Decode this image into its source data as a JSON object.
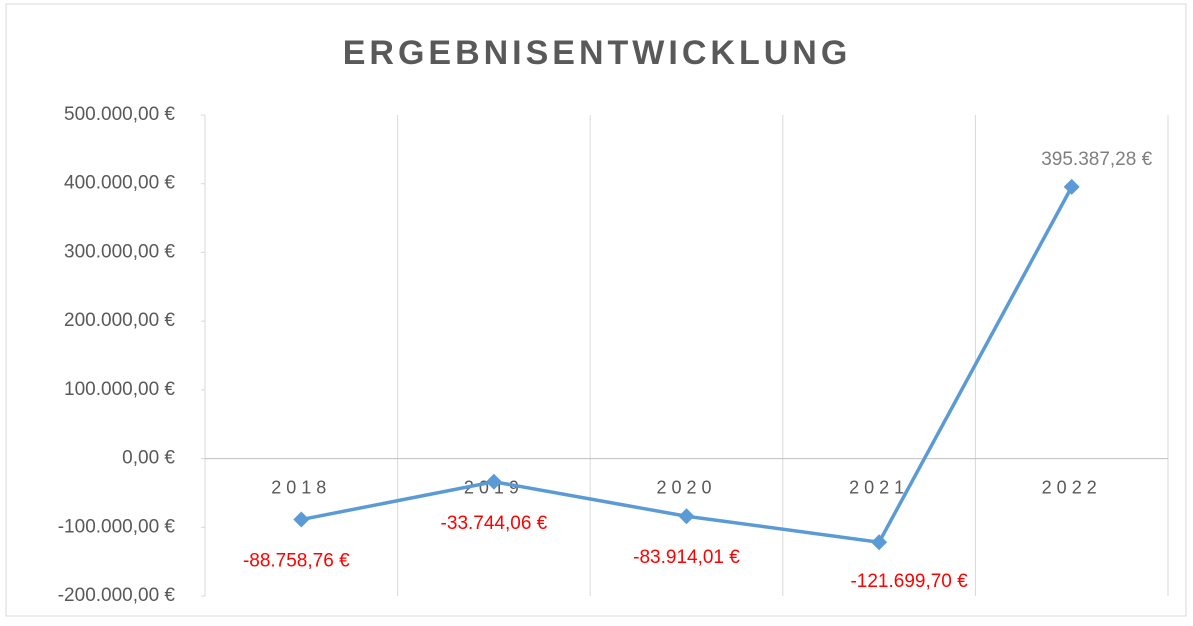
{
  "chart_data": {
    "type": "line",
    "title": "ERGEBNISENTWICKLUNG",
    "categories": [
      "2018",
      "2019",
      "2020",
      "2021",
      "2022"
    ],
    "series": [
      {
        "name": "Ergebnis",
        "color": "#5b9bd5",
        "values": [
          -88758.76,
          -33744.06,
          -83914.01,
          -121699.7,
          395387.28
        ],
        "value_labels": [
          "-88.758,76 €",
          "-33.744,06 €",
          "-83.914,01 €",
          "-121.699,70 €",
          "395.387,28 €"
        ]
      }
    ],
    "ylim": [
      -200000,
      500000
    ],
    "yticks": [
      {
        "value": -200000,
        "label": "-200.000,00 €"
      },
      {
        "value": -100000,
        "label": "-100.000,00 €"
      },
      {
        "value": 0,
        "label": "0,00 €"
      },
      {
        "value": 100000,
        "label": "100.000,00 €"
      },
      {
        "value": 200000,
        "label": "200.000,00 €"
      },
      {
        "value": 300000,
        "label": "300.000,00 €"
      },
      {
        "value": 400000,
        "label": "400.000,00 €"
      },
      {
        "value": 500000,
        "label": "500.000,00 €"
      }
    ],
    "grid": "vertical"
  }
}
